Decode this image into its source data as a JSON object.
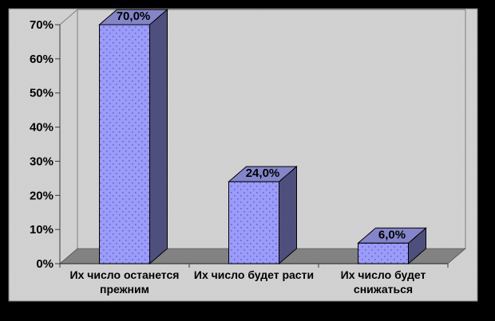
{
  "page": {
    "background": "#000000"
  },
  "chart_data": {
    "type": "bar",
    "projection": "3d",
    "title": "",
    "legend": "none",
    "grid": false,
    "categories": [
      "Их число останется прежним",
      "Их число будет расти",
      "Их число будет снижаться"
    ],
    "category_lines": [
      [
        "Их число останется",
        "прежним"
      ],
      [
        "Их число будет расти"
      ],
      [
        "Их число будет",
        "снижаться"
      ]
    ],
    "values": [
      70.0,
      24.0,
      6.0
    ],
    "data_labels": [
      "70,0%",
      "24,0%",
      "6,0%"
    ],
    "y_axis": {
      "min": 0,
      "max": 70,
      "step": 10,
      "ticks": [
        "0%",
        "10%",
        "20%",
        "30%",
        "40%",
        "50%",
        "60%",
        "70%"
      ]
    },
    "colors": {
      "bg_light": "#d9d9d9",
      "bg_dark": "#c8c8c8",
      "bar_front": "#9b9bfa",
      "bar_front_dot": "#6666cc",
      "bar_top_light": "#9f9ff2",
      "bar_top_dark": "#6a6aa2",
      "bar_side_light": "#6a6aa2",
      "bar_side_dark": "#34345a",
      "floor": "#828282",
      "axis": "#3a3a3a",
      "wall_line": "#7f7f7f",
      "outline": "#000000",
      "text": "#000000"
    }
  }
}
